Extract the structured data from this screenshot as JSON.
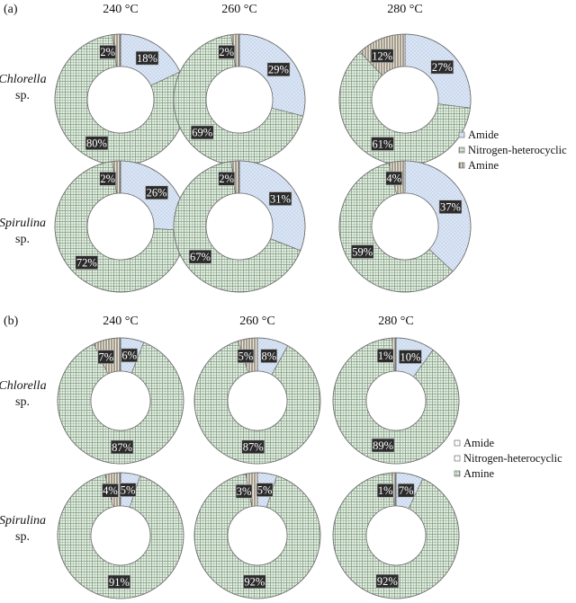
{
  "patterns": {
    "amide": "dots",
    "nitrogen_heterocyclic": "grid",
    "amine": "vlines"
  },
  "colors": {
    "amide": "#dbe6f6",
    "amide_dot": "#8fa7c9",
    "nitrogen_heterocyclic": "#dff0df",
    "nitrogen_line": "#8a9a8a",
    "amine": "#efe6d2",
    "amine_line": "#555555",
    "outline": "#707070",
    "label_bg": "#2b2b2b"
  },
  "chart_data": [
    {
      "panel": "(a)",
      "type": "pie",
      "columns": [
        "240 °C",
        "260 °C",
        "280 °C"
      ],
      "rows": [
        {
          "name": "Chlorella",
          "suffix": "sp."
        },
        {
          "name": "Spirulina",
          "suffix": "sp."
        }
      ],
      "legend": [
        "Amide",
        "Nitrogen-heterocyclic",
        "Amine"
      ],
      "legend_placement": "right-middle",
      "donuts": [
        [
          {
            "values": [
              18,
              80,
              2
            ],
            "labels": [
              "18%",
              "80%",
              "2%"
            ]
          },
          {
            "values": [
              29,
              69,
              2
            ],
            "labels": [
              "29%",
              "69%",
              "2%"
            ]
          },
          {
            "values": [
              27,
              61,
              12
            ],
            "labels": [
              "27%",
              "61%",
              "12%"
            ]
          }
        ],
        [
          {
            "values": [
              26,
              72,
              2
            ],
            "labels": [
              "26%",
              "72%",
              "2%"
            ]
          },
          {
            "values": [
              31,
              67,
              2
            ],
            "labels": [
              "31%",
              "67%",
              "2%"
            ]
          },
          {
            "values": [
              37,
              59,
              4
            ],
            "labels": [
              "37%",
              "59%",
              "4%"
            ]
          }
        ]
      ]
    },
    {
      "panel": "(b)",
      "type": "pie",
      "columns": [
        "240 °C",
        "260 °C",
        "280 °C"
      ],
      "rows": [
        {
          "name": "Chlorella",
          "suffix": "sp."
        },
        {
          "name": "Spirulina",
          "suffix": "sp."
        }
      ],
      "legend": [
        "Amide",
        "Nitrogen-heterocyclic",
        "Amine"
      ],
      "legend_placement": "right-middle",
      "donuts": [
        [
          {
            "values": [
              6,
              87,
              7
            ],
            "labels": [
              "6%",
              "87%",
              "7%"
            ]
          },
          {
            "values": [
              8,
              87,
              5
            ],
            "labels": [
              "8%",
              "87%",
              "5%"
            ]
          },
          {
            "values": [
              10,
              89,
              1
            ],
            "labels": [
              "10%",
              "89%",
              "1%"
            ]
          }
        ],
        [
          {
            "values": [
              5,
              91,
              4
            ],
            "labels": [
              "5%",
              "91%",
              "4%"
            ]
          },
          {
            "values": [
              5,
              92,
              3
            ],
            "labels": [
              "5%",
              "92%",
              "3%"
            ]
          },
          {
            "values": [
              7,
              92,
              1
            ],
            "labels": [
              "7%",
              "92%",
              "1%"
            ]
          }
        ]
      ]
    }
  ]
}
